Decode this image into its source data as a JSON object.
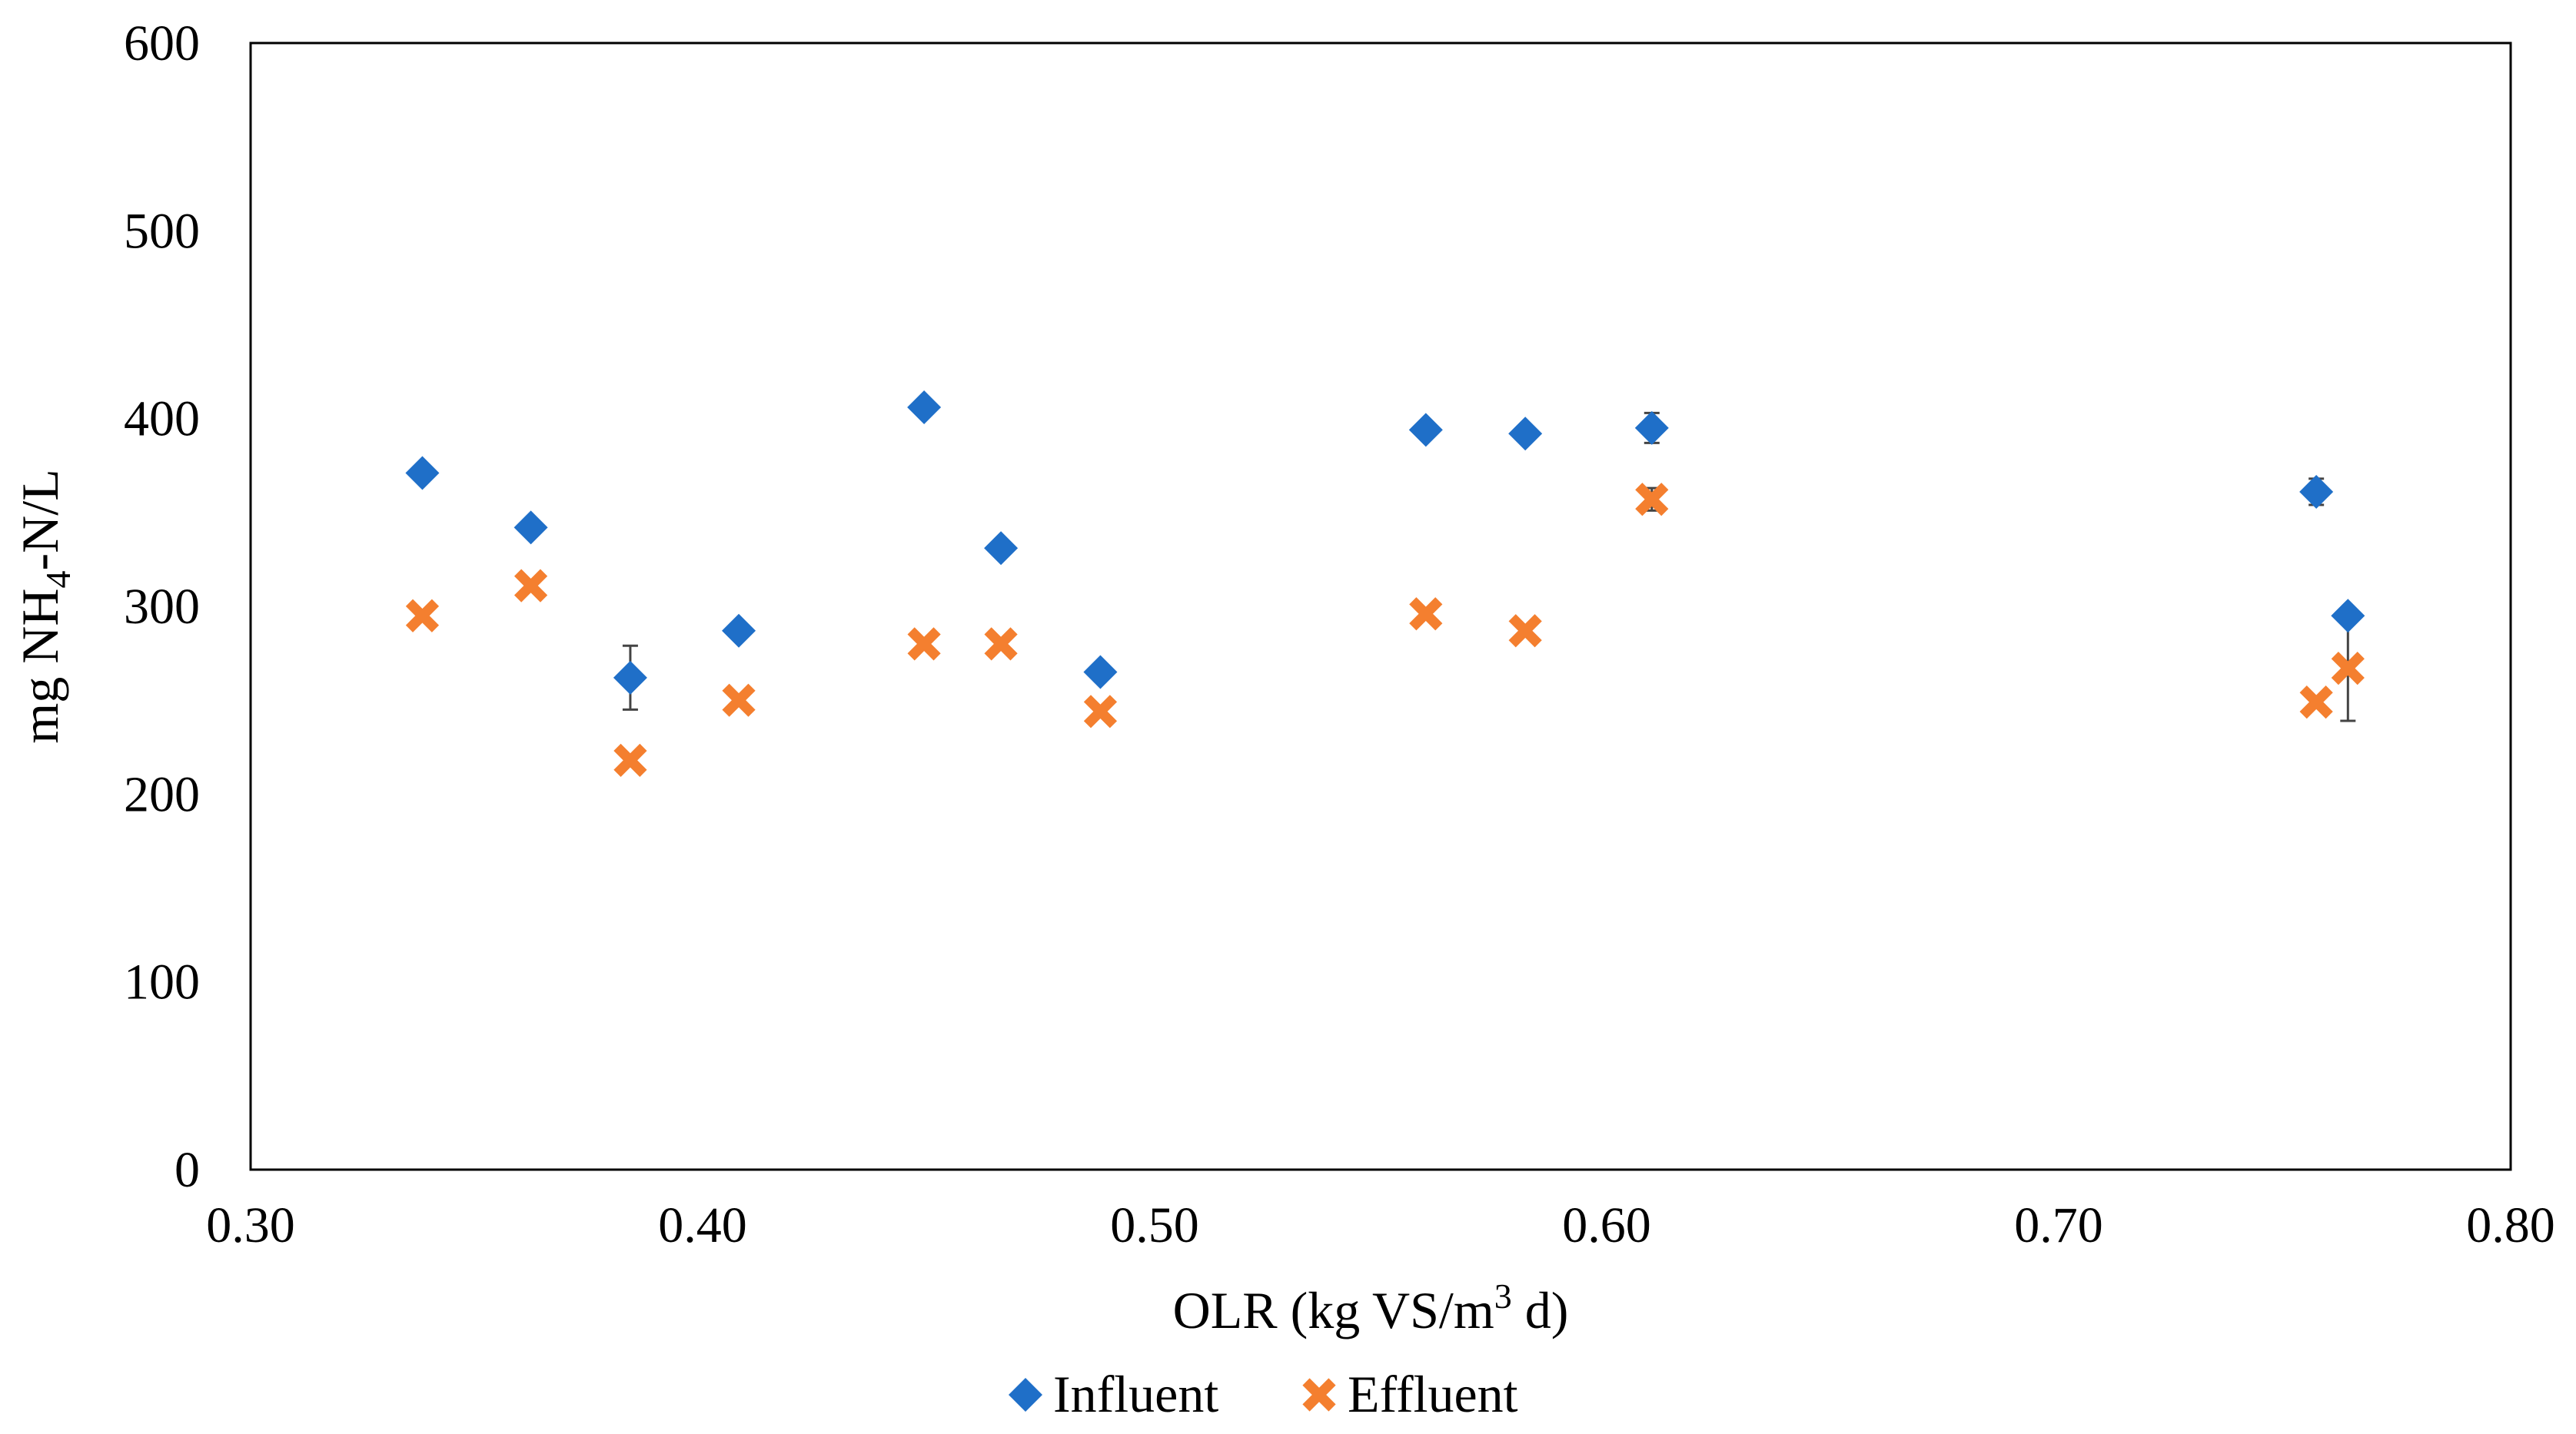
{
  "chart_data": {
    "type": "scatter",
    "title": "",
    "xlabel_main": "OLR (kg VS/m",
    "xlabel_sup": "3",
    "xlabel_end": " d)",
    "ylabel_main": "mg NH",
    "ylabel_sub": "4",
    "ylabel_end": "-N/L",
    "xlim": [
      0.3,
      0.8
    ],
    "ylim": [
      0,
      600
    ],
    "x_ticks": [
      0.3,
      0.4,
      0.5,
      0.6,
      0.7,
      0.8
    ],
    "x_tick_labels": [
      "0.30",
      "0.40",
      "0.50",
      "0.60",
      "0.70",
      "0.80"
    ],
    "y_ticks": [
      0,
      100,
      200,
      300,
      400,
      500,
      600
    ],
    "y_tick_labels": [
      "0",
      "100",
      "200",
      "300",
      "400",
      "500",
      "600"
    ],
    "grid": false,
    "legend_position": "bottom-center",
    "series": [
      {
        "name": "Influent",
        "marker": "diamond",
        "color": "#1F6FC8",
        "x": [
          0.338,
          0.362,
          0.384,
          0.408,
          0.449,
          0.466,
          0.488,
          0.56,
          0.582,
          0.61,
          0.757,
          0.764
        ],
        "y": [
          371,
          342,
          262,
          287,
          406,
          331,
          265,
          394,
          392,
          395,
          361,
          295
        ],
        "err": [
          0,
          0,
          17,
          0,
          0,
          0,
          0,
          0,
          0,
          8,
          7,
          0
        ]
      },
      {
        "name": "Effluent",
        "marker": "x",
        "color": "#F47F2F",
        "x": [
          0.338,
          0.362,
          0.384,
          0.408,
          0.449,
          0.466,
          0.488,
          0.56,
          0.582,
          0.61,
          0.757,
          0.764
        ],
        "y": [
          295,
          311,
          218,
          250,
          280,
          280,
          244,
          296,
          287,
          357,
          249,
          267
        ],
        "err": [
          0,
          0,
          0,
          0,
          0,
          0,
          0,
          0,
          0,
          6,
          0,
          28
        ]
      }
    ]
  }
}
